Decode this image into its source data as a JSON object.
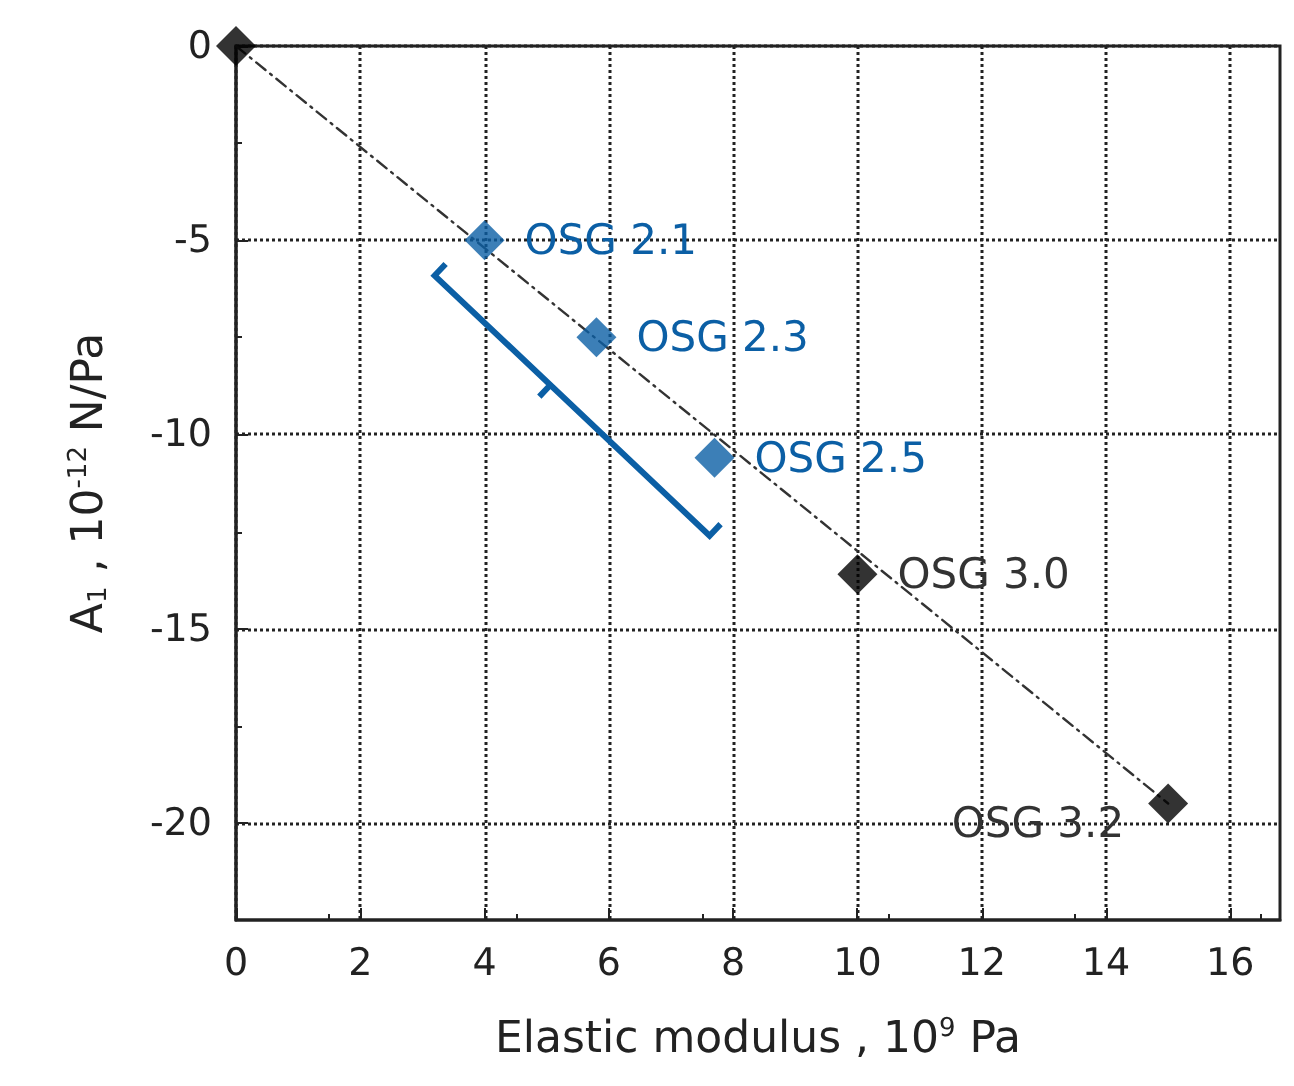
{
  "chart_data": {
    "type": "scatter",
    "xlabel": "Elastic modulus , 10$^{9}$ Pa",
    "ylabel": "A$_{1}$ , 10$^{-12}$ N/Pa",
    "xlim": [
      0,
      16.8
    ],
    "ylim": [
      -22.5,
      0
    ],
    "xticks": [
      0,
      2,
      4,
      6,
      8,
      10,
      12,
      14,
      16
    ],
    "yticks": [
      0,
      -5,
      -10,
      -15,
      -20
    ],
    "grid": true,
    "marker": "diamond",
    "series": [
      {
        "type": "line",
        "color": "#333333",
        "x": [
          0,
          15
        ],
        "values": [
          0,
          -19.5
        ],
        "line_style": "dashed",
        "marker": "none"
      },
      {
        "color": "#0b5fa5",
        "x": [
          4,
          5.8,
          7.7
        ],
        "values": [
          -5,
          -7.5,
          -10.6
        ]
      },
      {
        "color": "#000000",
        "x": [
          0,
          10,
          15
        ],
        "values": [
          0,
          -13.6,
          -19.5
        ]
      }
    ],
    "annotations": [
      {
        "text": "OSG 2.1",
        "x": 4,
        "y": -5
      },
      {
        "text": "OSG 2.3",
        "x": 5.8,
        "y": -7.5
      },
      {
        "text": "OSG 2.5",
        "x": 7.7,
        "y": -10.6
      },
      {
        "text": "OSG 3.0",
        "x": 10,
        "y": -13.6
      },
      {
        "text": "OSG 3.2",
        "x": 15,
        "y": -19.5
      }
    ]
  }
}
